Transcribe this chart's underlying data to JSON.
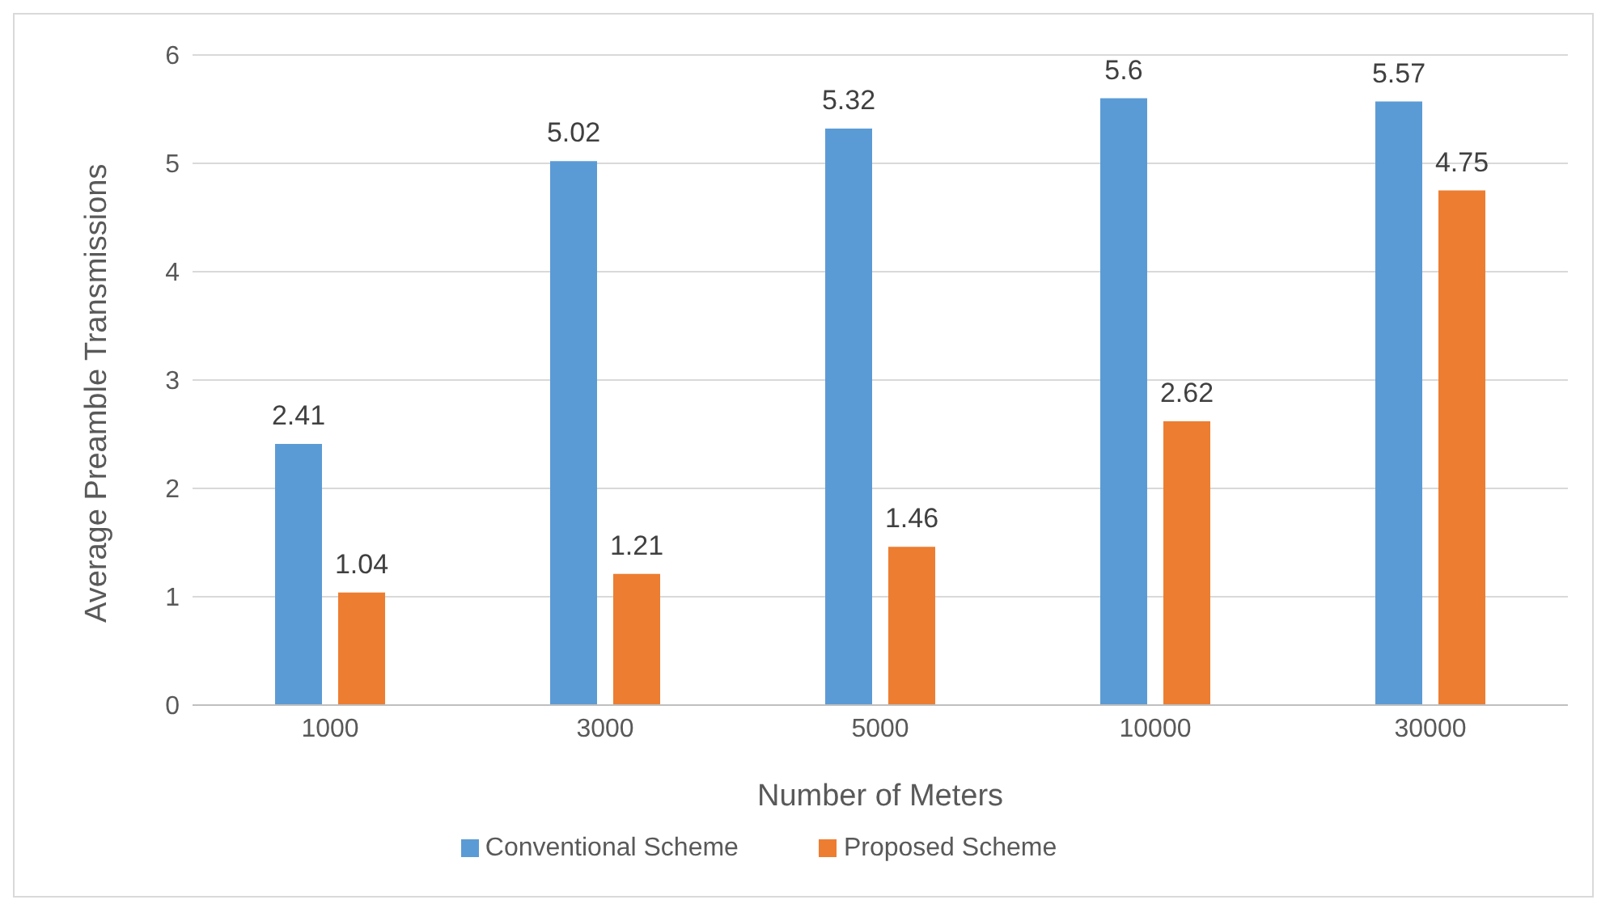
{
  "chart_data": {
    "type": "bar",
    "xlabel": "Number of Meters",
    "ylabel": "Average Preamble Transmissions",
    "categories": [
      "1000",
      "3000",
      "5000",
      "10000",
      "30000"
    ],
    "series": [
      {
        "name": "Conventional Scheme",
        "color": "#5b9bd5",
        "values": [
          2.41,
          5.02,
          5.32,
          5.6,
          5.57
        ]
      },
      {
        "name": "Proposed Scheme",
        "color": "#ed7d31",
        "values": [
          1.04,
          1.21,
          1.46,
          2.62,
          4.75
        ]
      }
    ],
    "ylim": [
      0,
      6
    ],
    "yticks": [
      0,
      1,
      2,
      3,
      4,
      5,
      6
    ],
    "grid": "y",
    "legend": "bottom",
    "data_labels": true
  }
}
